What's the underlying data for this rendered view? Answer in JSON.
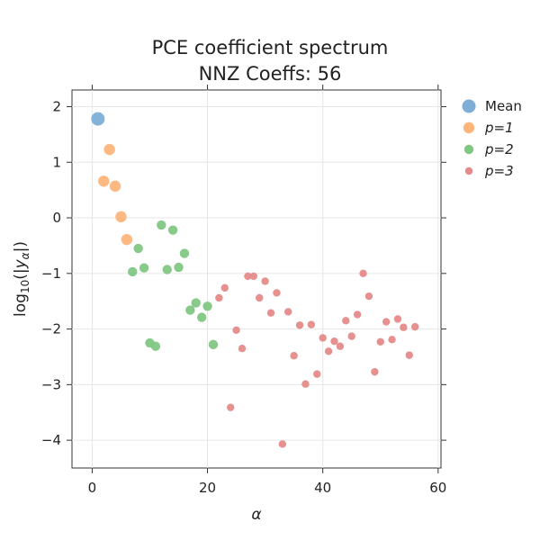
{
  "chart_data": {
    "type": "scatter",
    "title_line1": "PCE coefficient spectrum",
    "title_line2": "NNZ Coeffs: 56",
    "xlabel": "α",
    "ylabel_main": "log",
    "ylabel_sub": "10",
    "ylabel_open": "(|",
    "ylabel_var": "y",
    "ylabel_var_sub": "α",
    "ylabel_close": "|)",
    "xlim": [
      -3.5,
      60.5
    ],
    "ylim": [
      -4.5,
      2.3
    ],
    "x_ticks": [
      0,
      20,
      40,
      60
    ],
    "y_ticks": [
      2,
      1,
      0,
      -1,
      -2,
      -3,
      -4
    ],
    "x_tick_labels": [
      "0",
      "20",
      "40",
      "60"
    ],
    "y_tick_labels": [
      "2",
      "1",
      "0",
      "−1",
      "−2",
      "−3",
      "−4"
    ],
    "grid": true,
    "legend_position": "right",
    "series": [
      {
        "name": "Mean",
        "color": "#7eaed6",
        "size": "large",
        "x": [
          1
        ],
        "y": [
          1.78
        ]
      },
      {
        "name": "p=1",
        "color": "#fdb57a",
        "size": "medium",
        "x": [
          2,
          3,
          4,
          5,
          6
        ],
        "y": [
          0.66,
          1.23,
          0.57,
          0.02,
          -0.39
        ]
      },
      {
        "name": "p=2",
        "color": "#81c784",
        "size": "small",
        "x": [
          7,
          8,
          9,
          10,
          11,
          12,
          13,
          14,
          15,
          16,
          17,
          18,
          19,
          20,
          21
        ],
        "y": [
          -0.97,
          -0.55,
          -0.9,
          -2.25,
          -2.31,
          -0.13,
          -0.93,
          -0.22,
          -0.89,
          -0.64,
          -1.66,
          -1.53,
          -1.79,
          -1.59,
          -2.28
        ]
      },
      {
        "name": "p=3",
        "color": "#e58a8a",
        "size": "xsmall",
        "x": [
          22,
          23,
          24,
          25,
          26,
          27,
          28,
          29,
          30,
          31,
          32,
          33,
          34,
          35,
          36,
          37,
          38,
          39,
          40,
          41,
          42,
          43,
          44,
          45,
          46,
          47,
          48,
          49,
          50,
          51,
          52,
          53,
          54,
          55,
          56
        ],
        "y": [
          -1.44,
          -1.26,
          -3.41,
          -2.02,
          -2.35,
          -1.05,
          -1.05,
          -1.44,
          -1.14,
          -1.71,
          -1.35,
          -4.07,
          -1.69,
          -2.48,
          -1.93,
          -2.99,
          -1.92,
          -2.81,
          -2.16,
          -2.4,
          -2.22,
          -2.31,
          -1.85,
          -2.13,
          -1.74,
          -1.0,
          -1.41,
          -2.77,
          -2.23,
          -1.87,
          -2.19,
          -1.82,
          -1.97,
          -2.47,
          -1.96
        ]
      }
    ]
  }
}
